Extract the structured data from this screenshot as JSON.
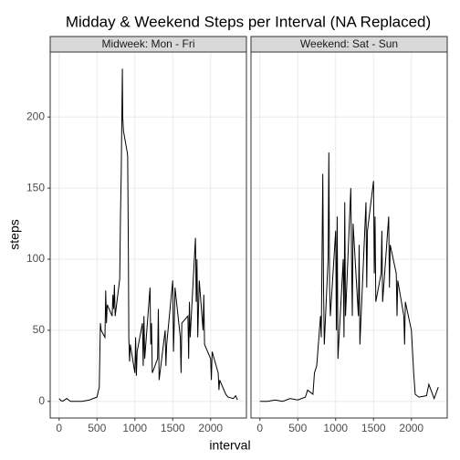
{
  "title": "Midday & Weekend Steps per Interval (NA Replaced)",
  "x_label": "interval",
  "y_label": "steps",
  "chart_data": [
    {
      "type": "line",
      "title": "Midweek: Mon - Fri",
      "color": "#000000",
      "grid": true,
      "xlim": [
        -117.75,
        2472.75
      ],
      "ylim": [
        -11.7,
        245.7
      ],
      "xticks": [
        0,
        500,
        1000,
        1500,
        2000
      ],
      "yticks": [
        0,
        50,
        100,
        150,
        200
      ],
      "x": [
        0,
        25,
        50,
        100,
        150,
        200,
        300,
        400,
        500,
        530,
        545,
        555,
        605,
        615,
        625,
        635,
        700,
        710,
        720,
        730,
        740,
        800,
        810,
        820,
        835,
        840,
        850,
        900,
        905,
        915,
        920,
        930,
        940,
        1000,
        1010,
        1020,
        1030,
        1100,
        1110,
        1120,
        1130,
        1200,
        1210,
        1220,
        1230,
        1300,
        1310,
        1320,
        1400,
        1410,
        1420,
        1500,
        1510,
        1520,
        1530,
        1600,
        1610,
        1620,
        1700,
        1710,
        1720,
        1730,
        1800,
        1810,
        1820,
        1830,
        1850,
        1900,
        1910,
        1920,
        2000,
        2010,
        2020,
        2100,
        2110,
        2120,
        2200,
        2230,
        2300,
        2330,
        2355
      ],
      "values": [
        2,
        0.5,
        0.2,
        2,
        0,
        0,
        0,
        1,
        3,
        10,
        55,
        50,
        45,
        78,
        55,
        68,
        60,
        75,
        65,
        82,
        60,
        86,
        130,
        160,
        234,
        200,
        190,
        175,
        172,
        100,
        45,
        28,
        40,
        20,
        45,
        18,
        35,
        55,
        25,
        60,
        30,
        80,
        40,
        55,
        20,
        30,
        65,
        15,
        50,
        25,
        40,
        85,
        35,
        55,
        80,
        45,
        20,
        55,
        60,
        30,
        70,
        45,
        115,
        70,
        100,
        45,
        85,
        50,
        75,
        40,
        30,
        15,
        35,
        20,
        8,
        15,
        5,
        3,
        2,
        4,
        1
      ]
    },
    {
      "type": "line",
      "title": "Weekend: Sat - Sun",
      "color": "#000000",
      "grid": true,
      "xlim": [
        -117.75,
        2472.75
      ],
      "ylim": [
        -11.7,
        245.7
      ],
      "xticks": [
        0,
        500,
        1000,
        1500,
        2000
      ],
      "yticks": [
        0,
        50,
        100,
        150,
        200
      ],
      "x": [
        0,
        50,
        100,
        200,
        300,
        400,
        500,
        600,
        630,
        700,
        720,
        750,
        800,
        810,
        830,
        840,
        850,
        900,
        910,
        920,
        930,
        1000,
        1010,
        1020,
        1030,
        1100,
        1110,
        1120,
        1130,
        1200,
        1210,
        1220,
        1230,
        1300,
        1310,
        1320,
        1400,
        1410,
        1420,
        1500,
        1510,
        1520,
        1530,
        1600,
        1610,
        1620,
        1700,
        1710,
        1720,
        1800,
        1810,
        1820,
        1900,
        1910,
        1920,
        2000,
        2010,
        2030,
        2050,
        2100,
        2200,
        2230,
        2300,
        2355
      ],
      "values": [
        0,
        0,
        0,
        1,
        0,
        2,
        1,
        3,
        8,
        5,
        20,
        25,
        60,
        45,
        160,
        80,
        40,
        100,
        175,
        80,
        60,
        120,
        50,
        130,
        30,
        100,
        45,
        140,
        60,
        150,
        100,
        60,
        125,
        60,
        110,
        40,
        140,
        80,
        120,
        155,
        90,
        130,
        70,
        90,
        120,
        70,
        130,
        80,
        110,
        90,
        60,
        85,
        60,
        40,
        70,
        50,
        40,
        20,
        5,
        3,
        4,
        12,
        2,
        10
      ]
    }
  ]
}
